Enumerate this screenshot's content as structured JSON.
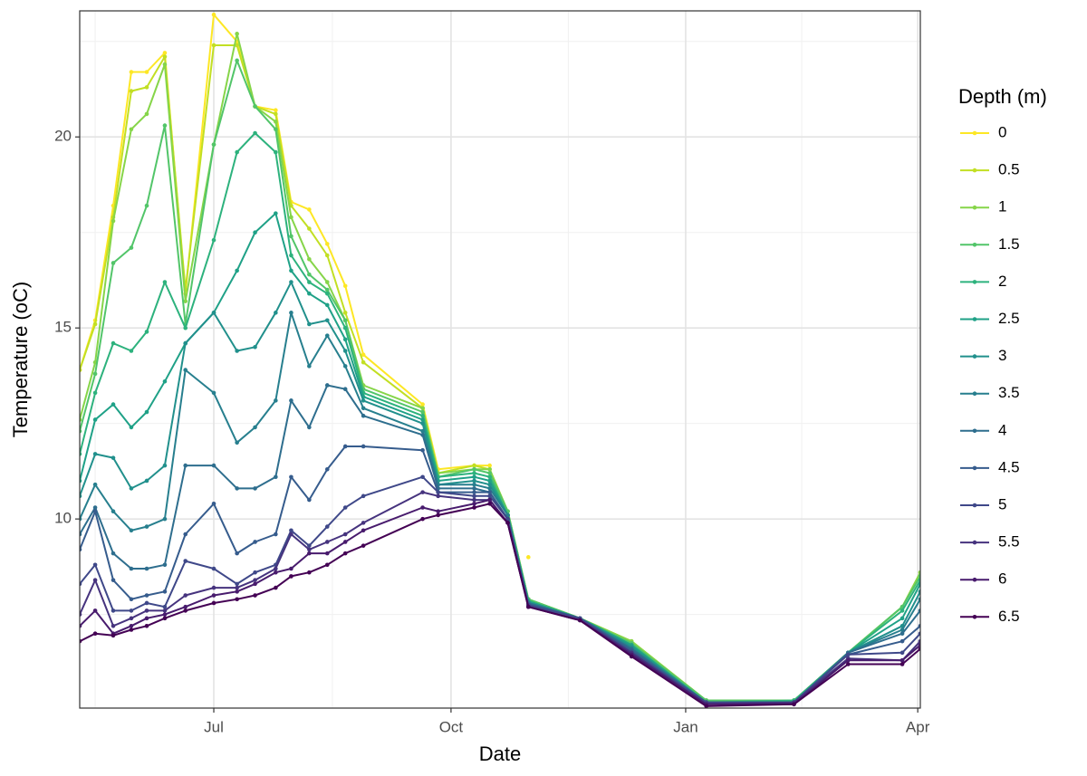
{
  "chart_data": {
    "type": "line",
    "xlabel": "Date",
    "ylabel": "Temperature (oC)",
    "legend_title": "Depth (m)",
    "legend": "right",
    "grid": true,
    "minor_grid": true,
    "x": [
      130,
      136,
      143,
      150,
      156,
      163,
      171,
      182,
      191,
      198,
      206,
      212,
      219,
      226,
      233,
      240,
      263,
      269,
      283,
      289,
      296,
      304,
      324,
      344,
      373,
      407,
      428,
      449,
      456
    ],
    "xlim": [
      130,
      456
    ],
    "xticks": [
      {
        "value": 182,
        "label": "Jul"
      },
      {
        "value": 274,
        "label": "Oct"
      },
      {
        "value": 365,
        "label": "Jan"
      },
      {
        "value": 455,
        "label": "Apr"
      }
    ],
    "ylim": [
      5.05,
      23.3
    ],
    "yticks": [
      10,
      15,
      20
    ],
    "series": [
      {
        "name": "0",
        "color": "#FDE725",
        "values": [
          13.9,
          15.2,
          18.2,
          21.7,
          21.7,
          22.2,
          15.9,
          23.2,
          22.5,
          20.8,
          20.7,
          18.3,
          18.1,
          17.2,
          16.1,
          14.3,
          13.0,
          11.3,
          11.4,
          11.4,
          null,
          9.0,
          null,
          null,
          null,
          null,
          null,
          null,
          null
        ]
      },
      {
        "name": "0.5",
        "color": "#C2DF23",
        "values": [
          13.9,
          15.1,
          17.9,
          21.2,
          21.3,
          22.1,
          16.0,
          22.4,
          22.4,
          20.8,
          20.6,
          18.2,
          17.6,
          16.9,
          15.4,
          14.1,
          12.9,
          11.2,
          11.4,
          11.3,
          10.2,
          7.9,
          7.4,
          6.8,
          5.25,
          5.25,
          6.5,
          7.7,
          8.6
        ]
      },
      {
        "name": "1",
        "color": "#86D549",
        "values": [
          12.6,
          14.1,
          17.8,
          20.2,
          20.6,
          21.9,
          15.7,
          19.8,
          22.7,
          20.8,
          20.4,
          17.9,
          16.8,
          16.2,
          15.2,
          13.5,
          12.9,
          11.2,
          11.3,
          11.3,
          10.2,
          7.9,
          7.4,
          6.8,
          5.25,
          5.25,
          6.5,
          7.7,
          8.6
        ]
      },
      {
        "name": "1.5",
        "color": "#52C569",
        "values": [
          12.3,
          13.8,
          16.7,
          17.1,
          18.2,
          20.3,
          15.1,
          19.8,
          22.0,
          20.8,
          20.2,
          17.4,
          16.4,
          16.0,
          15.2,
          13.4,
          12.8,
          11.1,
          11.3,
          11.2,
          10.2,
          7.9,
          7.4,
          6.75,
          5.25,
          5.25,
          6.5,
          7.7,
          8.5
        ]
      },
      {
        "name": "2",
        "color": "#2DB27D",
        "values": [
          11.7,
          13.3,
          14.6,
          14.4,
          14.9,
          16.2,
          15.0,
          17.3,
          19.6,
          20.1,
          19.6,
          16.9,
          16.2,
          15.9,
          15.0,
          13.3,
          12.7,
          11.1,
          11.2,
          11.1,
          10.1,
          7.85,
          7.4,
          6.7,
          5.2,
          5.25,
          6.5,
          7.6,
          8.4
        ]
      },
      {
        "name": "2.5",
        "color": "#1FA187",
        "values": [
          11.0,
          12.6,
          13.0,
          12.4,
          12.8,
          13.6,
          14.6,
          15.4,
          16.5,
          17.5,
          18.0,
          16.5,
          15.9,
          15.6,
          14.7,
          13.2,
          12.6,
          11.0,
          11.1,
          11.0,
          10.1,
          7.85,
          7.4,
          6.7,
          5.2,
          5.2,
          6.5,
          7.4,
          8.3
        ]
      },
      {
        "name": "3",
        "color": "#21908C",
        "values": [
          10.6,
          11.7,
          11.6,
          10.8,
          11.0,
          11.4,
          14.6,
          15.4,
          14.4,
          14.5,
          15.4,
          16.2,
          15.1,
          15.2,
          14.4,
          13.1,
          12.5,
          10.9,
          11.0,
          10.9,
          10.1,
          7.8,
          7.4,
          6.65,
          5.2,
          5.2,
          6.5,
          7.2,
          8.1
        ]
      },
      {
        "name": "3.5",
        "color": "#277F8E",
        "values": [
          10.0,
          10.9,
          10.2,
          9.7,
          9.8,
          10.0,
          13.9,
          13.3,
          12.0,
          12.4,
          13.1,
          15.4,
          14.0,
          14.8,
          14.0,
          12.9,
          12.3,
          10.9,
          10.9,
          10.8,
          10.1,
          7.8,
          7.4,
          6.6,
          5.2,
          5.2,
          6.5,
          7.1,
          7.9
        ]
      },
      {
        "name": "4",
        "color": "#2E6E8E",
        "values": [
          9.6,
          10.3,
          9.1,
          8.7,
          8.7,
          8.8,
          11.4,
          11.4,
          10.8,
          10.8,
          11.1,
          13.1,
          12.4,
          13.5,
          13.4,
          12.7,
          12.2,
          10.8,
          10.8,
          10.7,
          10.0,
          7.8,
          7.4,
          6.6,
          5.2,
          5.2,
          6.5,
          7.0,
          7.6
        ]
      },
      {
        "name": "4.5",
        "color": "#365C8D",
        "values": [
          9.2,
          10.2,
          8.4,
          7.9,
          8.0,
          8.1,
          9.6,
          10.4,
          9.1,
          9.4,
          9.6,
          11.1,
          10.5,
          11.3,
          11.9,
          11.9,
          11.8,
          10.7,
          10.7,
          10.7,
          10.0,
          7.75,
          7.4,
          6.55,
          5.2,
          5.2,
          6.45,
          6.8,
          7.2
        ]
      },
      {
        "name": "5",
        "color": "#3F4889",
        "values": [
          8.3,
          8.8,
          7.6,
          7.6,
          7.8,
          7.7,
          8.9,
          8.7,
          8.3,
          8.6,
          8.8,
          9.7,
          9.3,
          9.8,
          10.3,
          10.6,
          11.1,
          10.7,
          10.6,
          10.6,
          10.0,
          7.75,
          7.4,
          6.5,
          5.2,
          5.2,
          6.45,
          6.5,
          7.0
        ]
      },
      {
        "name": "5.5",
        "color": "#46337E",
        "values": [
          7.5,
          8.4,
          7.2,
          7.4,
          7.6,
          7.6,
          8.0,
          8.2,
          8.2,
          8.4,
          8.7,
          9.6,
          9.2,
          9.4,
          9.6,
          9.9,
          10.7,
          10.6,
          10.5,
          10.5,
          9.9,
          7.7,
          7.35,
          6.5,
          5.15,
          5.2,
          6.35,
          6.3,
          6.8
        ]
      },
      {
        "name": "6",
        "color": "#481B6D",
        "values": [
          7.2,
          7.6,
          7.0,
          7.2,
          7.4,
          7.5,
          7.7,
          8.0,
          8.1,
          8.3,
          8.6,
          8.7,
          9.1,
          9.1,
          9.4,
          9.7,
          10.3,
          10.2,
          10.4,
          10.5,
          9.9,
          7.7,
          7.35,
          6.45,
          5.15,
          5.15,
          6.3,
          6.3,
          6.7
        ]
      },
      {
        "name": "6.5",
        "color": "#440154",
        "values": [
          6.8,
          7.0,
          6.95,
          7.1,
          7.2,
          7.4,
          7.6,
          7.8,
          7.9,
          8.0,
          8.2,
          8.5,
          8.6,
          8.8,
          9.1,
          9.3,
          10.0,
          10.1,
          10.3,
          10.4,
          9.9,
          7.7,
          7.35,
          6.4,
          5.1,
          5.15,
          6.2,
          6.2,
          6.6
        ]
      }
    ]
  }
}
